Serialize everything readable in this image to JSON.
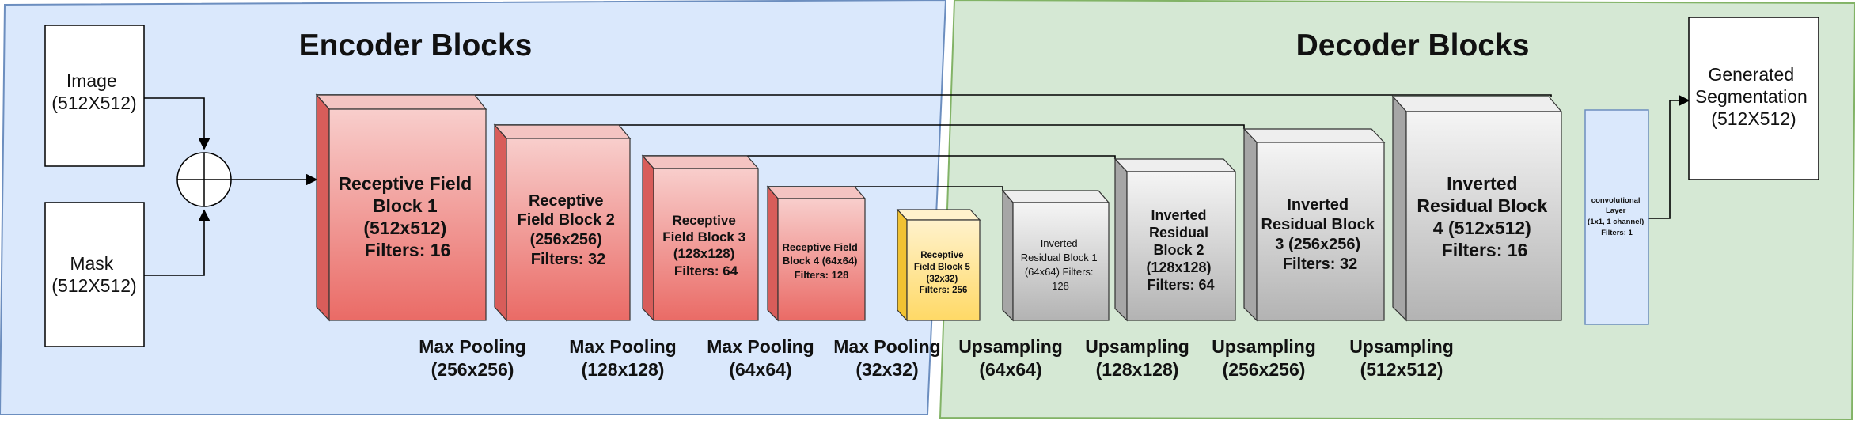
{
  "sections": {
    "encoder_title": "Encoder Blocks",
    "decoder_title": "Decoder Blocks"
  },
  "inputs": {
    "image": [
      "Image",
      "(512X512)"
    ],
    "mask": [
      "Mask",
      "(512X512)"
    ]
  },
  "encoder_blocks": [
    [
      "Receptive Field",
      "Block 1",
      "(512x512)",
      "Filters: 16"
    ],
    [
      "Receptive",
      "Field Block 2",
      "(256x256)",
      "Filters: 32"
    ],
    [
      "Receptive",
      "Field Block 3",
      "(128x128)",
      "Filters: 64"
    ],
    [
      "Receptive Field",
      "Block 4 (64x64)",
      "Filters: 128"
    ]
  ],
  "bottleneck": [
    "Receptive",
    "Field Block 5",
    "(32x32)",
    "Filters: 256"
  ],
  "decoder_blocks": [
    [
      "Inverted",
      "Residual Block 1",
      "(64x64) Filters:",
      "128"
    ],
    [
      "Inverted",
      "Residual",
      "Block 2",
      "(128x128)",
      "Filters: 64"
    ],
    [
      "Inverted",
      "Residual Block",
      "3 (256x256)",
      "Filters: 32"
    ],
    [
      "Inverted",
      "Residual Block",
      "4 (512x512)",
      "Filters: 16"
    ]
  ],
  "conv_layer": [
    "convolutional",
    "Layer",
    "(1x1, 1 channel)",
    "Filters: 1"
  ],
  "output": [
    "Generated",
    "Segmentation",
    "(512X512)"
  ],
  "pooling_labels": [
    [
      "Max Pooling",
      "(256x256)"
    ],
    [
      "Max Pooling",
      "(128x128)"
    ],
    [
      "Max Pooling",
      "(64x64)"
    ],
    [
      "Max Pooling",
      "(32x32)"
    ]
  ],
  "upsampling_labels": [
    [
      "Upsampling",
      "(64x64)"
    ],
    [
      "Upsampling",
      "(128x128)"
    ],
    [
      "Upsampling",
      "(256x256)"
    ],
    [
      "Upsampling",
      "(512x512)"
    ]
  ],
  "colors": {
    "encoder_bg": "#dae8fc",
    "decoder_bg": "#d5e8d4",
    "encoder_block_top": "#f8cecc",
    "encoder_block_bottom": "#ea6b66",
    "bottleneck_top": "#fff2cc",
    "bottleneck_bottom": "#ffd966",
    "decoder_block_top": "#f5f5f5",
    "decoder_block_bottom": "#b3b3b3",
    "conv_fill": "#dae8fc"
  }
}
